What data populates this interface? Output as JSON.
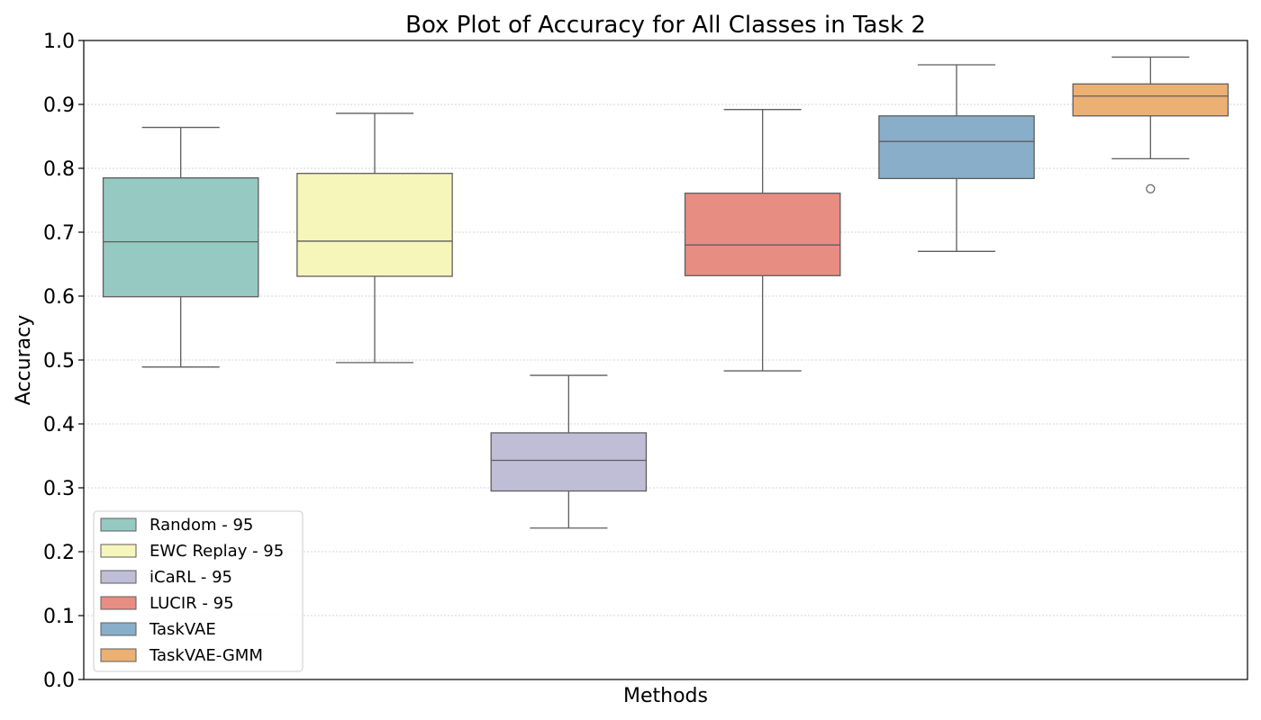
{
  "chart_data": {
    "type": "box",
    "title": "Box Plot of Accuracy for All Classes in Task 2",
    "xlabel": "Methods",
    "ylabel": "Accuracy",
    "ylim": [
      0.0,
      1.0
    ],
    "yticks": [
      "0.0",
      "0.1",
      "0.2",
      "0.3",
      "0.4",
      "0.5",
      "0.6",
      "0.7",
      "0.8",
      "0.9",
      "1.0"
    ],
    "grid": "horizontal dotted",
    "legend_position": "lower-left",
    "series": [
      {
        "name": "Random - 95",
        "color": "#96c9c1",
        "whisker_low": 0.489,
        "q1": 0.599,
        "median": 0.685,
        "q3": 0.785,
        "whisker_high": 0.864,
        "outliers": []
      },
      {
        "name": "EWC Replay - 95",
        "color": "#f6f6bb",
        "whisker_low": 0.496,
        "q1": 0.631,
        "median": 0.686,
        "q3": 0.792,
        "whisker_high": 0.886,
        "outliers": []
      },
      {
        "name": "iCaRL - 95",
        "color": "#c0bdd6",
        "whisker_low": 0.237,
        "q1": 0.295,
        "median": 0.343,
        "q3": 0.386,
        "whisker_high": 0.476,
        "outliers": []
      },
      {
        "name": "LUCIR - 95",
        "color": "#e88d82",
        "whisker_low": 0.483,
        "q1": 0.632,
        "median": 0.68,
        "q3": 0.761,
        "whisker_high": 0.892,
        "outliers": []
      },
      {
        "name": "TaskVAE",
        "color": "#88aec9",
        "whisker_low": 0.67,
        "q1": 0.784,
        "median": 0.842,
        "q3": 0.882,
        "whisker_high": 0.962,
        "outliers": []
      },
      {
        "name": "TaskVAE-GMM",
        "color": "#ebb073",
        "whisker_low": 0.815,
        "q1": 0.882,
        "median": 0.913,
        "q3": 0.932,
        "whisker_high": 0.974,
        "outliers": [
          0.768
        ]
      }
    ]
  }
}
